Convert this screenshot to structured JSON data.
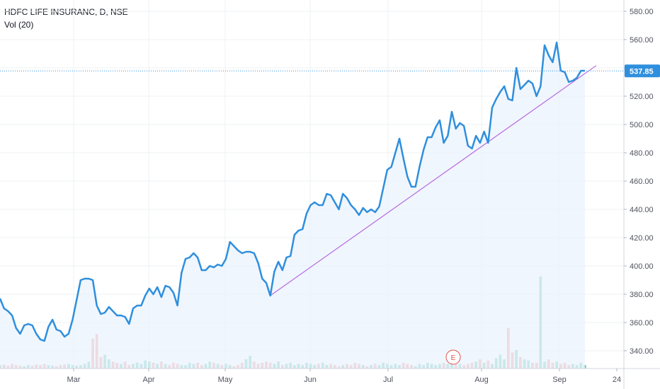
{
  "legend": {
    "symbol": "HDFC LIFE INSURANC, D, NSE",
    "volume": "Vol (20)"
  },
  "colors": {
    "line": "#2f8fdd",
    "area": "#e9f2fc",
    "trendline": "#b56ce0",
    "price_line": "#2f8fdd",
    "vol_up": "#7fcfc0",
    "vol_down": "#f0a8a8",
    "event": "#e0504d",
    "grid": "#eef0f3"
  },
  "chart_data": {
    "type": "line",
    "title": "HDFC LIFE INSURANC, D, NSE",
    "x_tick_labels": [
      "Mar",
      "Apr",
      "May",
      "Jun",
      "Jul",
      "Aug",
      "Sep",
      "24"
    ],
    "y_ticks": [
      340,
      360,
      380,
      400,
      420,
      440,
      460,
      480,
      500,
      520,
      540,
      560,
      580
    ],
    "ylim": [
      328,
      585
    ],
    "grid": true,
    "current_price": 537.85,
    "current_price_label": "537.85",
    "event_marker": "E",
    "series": [
      {
        "values": [
          377,
          370,
          368,
          365,
          356,
          352,
          358,
          359,
          358,
          352,
          348,
          347,
          357,
          362,
          355,
          354,
          350,
          352,
          362,
          376,
          390,
          391,
          391,
          390,
          372,
          366,
          367,
          371,
          368,
          365,
          365,
          364,
          359,
          370,
          372,
          372,
          379,
          384,
          380,
          385,
          378,
          386,
          385,
          381,
          372,
          395,
          405,
          406,
          409,
          406,
          397,
          397,
          400,
          399,
          401,
          400,
          405,
          417,
          414,
          411,
          409,
          410,
          410,
          409,
          402,
          391,
          388,
          379,
          396,
          403,
          397,
          406,
          407,
          422,
          425,
          426,
          437,
          443,
          445,
          443,
          443,
          451,
          450,
          445,
          440,
          451,
          448,
          443,
          440,
          436,
          441,
          438,
          440,
          438,
          442,
          455,
          468,
          470,
          480,
          490,
          476,
          463,
          456,
          456,
          470,
          482,
          491,
          491,
          498,
          503,
          487,
          492,
          509,
          497,
          501,
          499,
          485,
          483,
          492,
          487,
          495,
          487,
          512,
          518,
          523,
          527,
          518,
          517,
          540,
          525,
          528,
          531,
          529,
          520,
          527,
          556,
          549,
          544,
          558,
          538,
          537,
          530,
          531,
          533,
          538,
          538
        ],
        "volume": [
          0.3,
          0.35,
          0.25,
          0.4,
          0.3,
          0.25,
          0.2,
          0.3,
          0.25,
          0.35,
          0.3,
          0.4,
          0.3,
          0.25,
          0.2,
          0.3,
          0.35,
          0.4,
          0.3,
          0.25,
          0.3,
          0.4,
          0.6,
          2.6,
          3.0,
          1.0,
          1.2,
          0.8,
          0.6,
          0.5,
          0.4,
          0.6,
          0.3,
          0.4,
          0.5,
          0.4,
          0.7,
          0.6,
          0.5,
          0.4,
          0.6,
          0.4,
          0.3,
          0.5,
          0.4,
          0.3,
          0.3,
          0.5,
          0.4,
          0.5,
          0.3,
          0.4,
          0.6,
          0.5,
          0.4,
          0.3,
          0.4,
          0.3,
          0.2,
          0.3,
          0.5,
          0.8,
          1.1,
          0.6,
          0.4,
          0.5,
          0.6,
          0.5,
          0.4,
          0.6,
          0.3,
          0.4,
          0.5,
          0.3,
          0.4,
          0.3,
          0.5,
          0.4,
          0.3,
          0.4,
          0.5,
          0.3,
          0.4,
          0.3,
          0.2,
          0.3,
          0.4,
          0.3,
          0.5,
          0.4,
          0.3,
          0.2,
          0.3,
          0.4,
          0.3,
          0.5,
          0.4,
          0.3,
          0.4,
          0.3,
          0.5,
          0.4,
          0.3,
          0.2,
          0.4,
          0.3,
          0.5,
          0.4,
          0.3,
          0.4,
          0.5,
          0.4,
          0.6,
          0.5,
          0.4,
          0.3,
          0.4,
          0.5,
          0.6,
          0.8,
          0.5,
          0.7,
          0.4,
          0.9,
          1.2,
          0.8,
          3.5,
          1.4,
          1.6,
          1.0,
          0.8,
          0.7,
          0.5,
          0.5,
          8.0,
          0.6,
          0.8,
          0.5,
          0.6,
          0.4,
          0.5,
          0.3,
          0.4,
          0.3,
          0.5,
          0.3
        ]
      }
    ]
  }
}
